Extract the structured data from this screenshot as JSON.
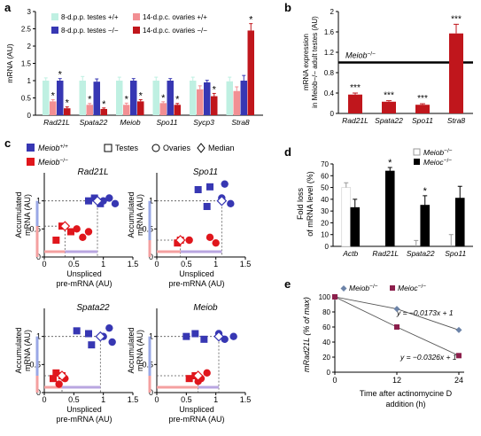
{
  "panels": {
    "a": "a",
    "b": "b",
    "c": "c",
    "d": "d",
    "e": "e"
  },
  "chart_data": [
    {
      "id": "a",
      "type": "bar",
      "ylabel": "mRNA (AU)",
      "ylim": [
        0,
        3
      ],
      "yticks": [
        "0",
        "0.5",
        "1",
        "1.5",
        "2",
        "2.5",
        "3"
      ],
      "categories": [
        "Rad21L",
        "Spata22",
        "Meiob",
        "Spo11",
        "Sycp3",
        "Stra8"
      ],
      "legend": [
        "8-d.p.p. testes +/+",
        "14-d.p.c. ovaries +/+",
        "8-d.p.p. testes −/−",
        "14-d.p.c. ovaries −/−"
      ],
      "series": [
        {
          "name": "8-d.p.p. testes +/+",
          "color": "#bff0e2",
          "values": [
            1.0,
            1.0,
            1.0,
            1.0,
            1.0,
            0.98
          ],
          "err": [
            0.08,
            0.12,
            0.1,
            0.1,
            0.1,
            0.12
          ]
        },
        {
          "name": "8-d.p.p. testes −/−",
          "color": "#f28f93",
          "values": [
            0.4,
            0.3,
            0.3,
            0.35,
            0.75,
            0.7
          ],
          "err": [
            0.05,
            0.04,
            0.05,
            0.04,
            0.1,
            0.12
          ]
        },
        {
          "name": "14-d.p.c. ovaries +/+",
          "color": "#3737b3",
          "values": [
            1.0,
            0.97,
            1.0,
            1.0,
            0.95,
            1.0
          ],
          "err": [
            0.06,
            0.08,
            0.06,
            0.06,
            0.06,
            0.15
          ]
        },
        {
          "name": "14-d.p.c. ovaries −/−",
          "color": "#c0161c",
          "values": [
            0.2,
            0.18,
            0.4,
            0.3,
            0.55,
            2.45
          ],
          "err": [
            0.04,
            0.03,
            0.05,
            0.04,
            0.08,
            0.2
          ]
        }
      ],
      "annotations": [
        {
          "category": "Rad21L",
          "series": 1,
          "text": "*"
        },
        {
          "category": "Rad21L",
          "series": 2,
          "text": "*"
        },
        {
          "category": "Rad21L",
          "series": 3,
          "text": "*"
        },
        {
          "category": "Spata22",
          "series": 1,
          "text": "*"
        },
        {
          "category": "Spata22",
          "series": 3,
          "text": "*"
        },
        {
          "category": "Meiob",
          "series": 1,
          "text": "*"
        },
        {
          "category": "Meiob",
          "series": 3,
          "text": "*"
        },
        {
          "category": "Spo11",
          "series": 1,
          "text": "*"
        },
        {
          "category": "Spo11",
          "series": 3,
          "text": "*"
        },
        {
          "category": "Sycp3",
          "series": 3,
          "text": "*"
        },
        {
          "category": "Stra8",
          "series": 3,
          "text": "*"
        }
      ]
    },
    {
      "id": "b",
      "type": "bar",
      "ylabel": "mRNA expression in Meiob−/− adult testes (AU)",
      "ylim": [
        0,
        2
      ],
      "yticks": [
        "0",
        "0.4",
        "0.8",
        "1.2",
        "1.6",
        "2"
      ],
      "categories": [
        "Rad21L",
        "Spata22",
        "Spo11",
        "Stra8"
      ],
      "values": [
        0.37,
        0.23,
        0.17,
        1.57
      ],
      "err": [
        0.03,
        0.02,
        0.02,
        0.18
      ],
      "reference_label": "Meiob−/−",
      "reference_value": 1,
      "sig": [
        "***",
        "***",
        "***",
        "***"
      ]
    },
    {
      "id": "c",
      "type": "scatter",
      "legend": [
        "Meiob+/+",
        "Meiob−/−",
        "Testes",
        "Ovaries",
        "Median"
      ],
      "xlabel": "Unspliced pre-mRNA (AU)",
      "ylabel": "Accumulated mRNA (AU)",
      "xlim": [
        0,
        1.5
      ],
      "ylim": [
        0,
        1.5
      ],
      "xticks": [
        "0",
        "0.5",
        "1",
        "1.5"
      ],
      "yticks": [
        "0",
        "0.5",
        "1"
      ],
      "subplots": [
        {
          "title": "Rad21L",
          "wt_median": [
            0.9,
            1.0
          ],
          "ko_median": [
            0.35,
            0.55
          ],
          "points": [
            {
              "g": "wt",
              "s": "sq",
              "x": 0.75,
              "y": 1.0
            },
            {
              "g": "wt",
              "s": "sq",
              "x": 0.85,
              "y": 1.05
            },
            {
              "g": "wt",
              "s": "sq",
              "x": 0.95,
              "y": 0.95
            },
            {
              "g": "wt",
              "s": "ci",
              "x": 1.1,
              "y": 1.05
            },
            {
              "g": "wt",
              "s": "ci",
              "x": 1.2,
              "y": 0.95
            },
            {
              "g": "wt",
              "s": "ci",
              "x": 1.0,
              "y": 1.0
            },
            {
              "g": "ko",
              "s": "sq",
              "x": 0.2,
              "y": 0.3
            },
            {
              "g": "ko",
              "s": "sq",
              "x": 0.3,
              "y": 0.55
            },
            {
              "g": "ko",
              "s": "sq",
              "x": 0.45,
              "y": 0.45
            },
            {
              "g": "ko",
              "s": "ci",
              "x": 0.55,
              "y": 0.5
            },
            {
              "g": "ko",
              "s": "ci",
              "x": 0.65,
              "y": 0.35
            },
            {
              "g": "ko",
              "s": "ci",
              "x": 0.75,
              "y": 0.45
            }
          ]
        },
        {
          "title": "Spo11",
          "wt_median": [
            1.1,
            1.0
          ],
          "ko_median": [
            0.4,
            0.3
          ],
          "points": [
            {
              "g": "wt",
              "s": "sq",
              "x": 0.7,
              "y": 1.2
            },
            {
              "g": "wt",
              "s": "sq",
              "x": 0.9,
              "y": 1.25
            },
            {
              "g": "wt",
              "s": "sq",
              "x": 0.85,
              "y": 0.9
            },
            {
              "g": "wt",
              "s": "ci",
              "x": 1.15,
              "y": 1.3
            },
            {
              "g": "wt",
              "s": "ci",
              "x": 1.25,
              "y": 0.95
            },
            {
              "g": "wt",
              "s": "ci",
              "x": 1.1,
              "y": 1.05
            },
            {
              "g": "ko",
              "s": "sq",
              "x": 0.35,
              "y": 0.25
            },
            {
              "g": "ko",
              "s": "sq",
              "x": 0.4,
              "y": 0.3
            },
            {
              "g": "ko",
              "s": "ci",
              "x": 0.55,
              "y": 0.3
            },
            {
              "g": "ko",
              "s": "ci",
              "x": 0.9,
              "y": 0.35
            },
            {
              "g": "ko",
              "s": "ci",
              "x": 1.0,
              "y": 0.25
            }
          ]
        },
        {
          "title": "Spata22",
          "wt_median": [
            0.95,
            1.0
          ],
          "ko_median": [
            0.3,
            0.3
          ],
          "points": [
            {
              "g": "wt",
              "s": "sq",
              "x": 0.55,
              "y": 1.1
            },
            {
              "g": "wt",
              "s": "sq",
              "x": 0.75,
              "y": 1.05
            },
            {
              "g": "wt",
              "s": "sq",
              "x": 0.8,
              "y": 0.85
            },
            {
              "g": "wt",
              "s": "ci",
              "x": 1.0,
              "y": 1.0
            },
            {
              "g": "wt",
              "s": "ci",
              "x": 1.1,
              "y": 1.15
            },
            {
              "g": "wt",
              "s": "ci",
              "x": 1.15,
              "y": 0.9
            },
            {
              "g": "ko",
              "s": "sq",
              "x": 0.15,
              "y": 0.25
            },
            {
              "g": "ko",
              "s": "sq",
              "x": 0.2,
              "y": 0.35
            },
            {
              "g": "ko",
              "s": "sq",
              "x": 0.3,
              "y": 0.3
            },
            {
              "g": "ko",
              "s": "ci",
              "x": 0.25,
              "y": 0.15
            },
            {
              "g": "ko",
              "s": "ci",
              "x": 0.35,
              "y": 0.25
            }
          ]
        },
        {
          "title": "Meiob",
          "wt_median": [
            1.05,
            1.0
          ],
          "ko_median": [
            0.7,
            0.3
          ],
          "points": [
            {
              "g": "wt",
              "s": "sq",
              "x": 0.5,
              "y": 1.0
            },
            {
              "g": "wt",
              "s": "sq",
              "x": 0.65,
              "y": 1.05
            },
            {
              "g": "wt",
              "s": "sq",
              "x": 0.8,
              "y": 0.95
            },
            {
              "g": "wt",
              "s": "ci",
              "x": 1.05,
              "y": 1.05
            },
            {
              "g": "wt",
              "s": "ci",
              "x": 1.15,
              "y": 0.95
            },
            {
              "g": "wt",
              "s": "ci",
              "x": 1.3,
              "y": 1.0
            },
            {
              "g": "ko",
              "s": "sq",
              "x": 0.55,
              "y": 0.25
            },
            {
              "g": "ko",
              "s": "sq",
              "x": 0.65,
              "y": 0.3
            },
            {
              "g": "ko",
              "s": "ci",
              "x": 0.75,
              "y": 0.25
            },
            {
              "g": "ko",
              "s": "ci",
              "x": 0.85,
              "y": 0.35
            },
            {
              "g": "ko",
              "s": "ci",
              "x": 0.7,
              "y": 0.2
            }
          ]
        }
      ]
    },
    {
      "id": "d",
      "type": "bar",
      "ylabel": "Fold loss of mRNA level (%)",
      "ylim": [
        0,
        70
      ],
      "yticks": [
        "0",
        "10",
        "20",
        "30",
        "40",
        "50",
        "60",
        "70"
      ],
      "categories": [
        "Actb",
        "Rad21L",
        "Spata22",
        "Spo11"
      ],
      "legend": [
        "Meiob−/−",
        "Meioc−/−"
      ],
      "series": [
        {
          "name": "Meiob−/−",
          "color": "#ffffff",
          "values": [
            50,
            0,
            0,
            0
          ],
          "err": [
            4,
            0,
            5,
            10
          ]
        },
        {
          "name": "Meioc−/−",
          "color": "#000000",
          "values": [
            33,
            64,
            35,
            41
          ],
          "err": [
            7,
            3,
            8,
            10
          ]
        }
      ],
      "sig": [
        {
          "category": "Rad21L",
          "text": "*"
        },
        {
          "category": "Spata22",
          "text": "*"
        }
      ]
    },
    {
      "id": "e",
      "type": "line",
      "xlabel": "Time after actinomycine D addition (h)",
      "ylabel": "mRad21L (% of max)",
      "xlim": [
        0,
        24
      ],
      "ylim": [
        0,
        100
      ],
      "xticks": [
        "0",
        "12",
        "24"
      ],
      "yticks": [
        "0",
        "20",
        "40",
        "60",
        "80",
        "100"
      ],
      "legend": [
        "Meiob−/−",
        "Meioc−/−"
      ],
      "series": [
        {
          "name": "Meiob−/−",
          "color": "#6c83a8",
          "x": [
            0,
            12,
            24
          ],
          "y": [
            100,
            84,
            56
          ],
          "fit": "y = −0.0173x + 1",
          "fit_color": "#3fae6a"
        },
        {
          "name": "Meioc−/−",
          "color": "#8c1f4c",
          "x": [
            0,
            12,
            24
          ],
          "y": [
            100,
            60,
            22
          ],
          "fit": "y = −0.0326x + 1",
          "fit_color": "#b5357a"
        }
      ]
    }
  ]
}
